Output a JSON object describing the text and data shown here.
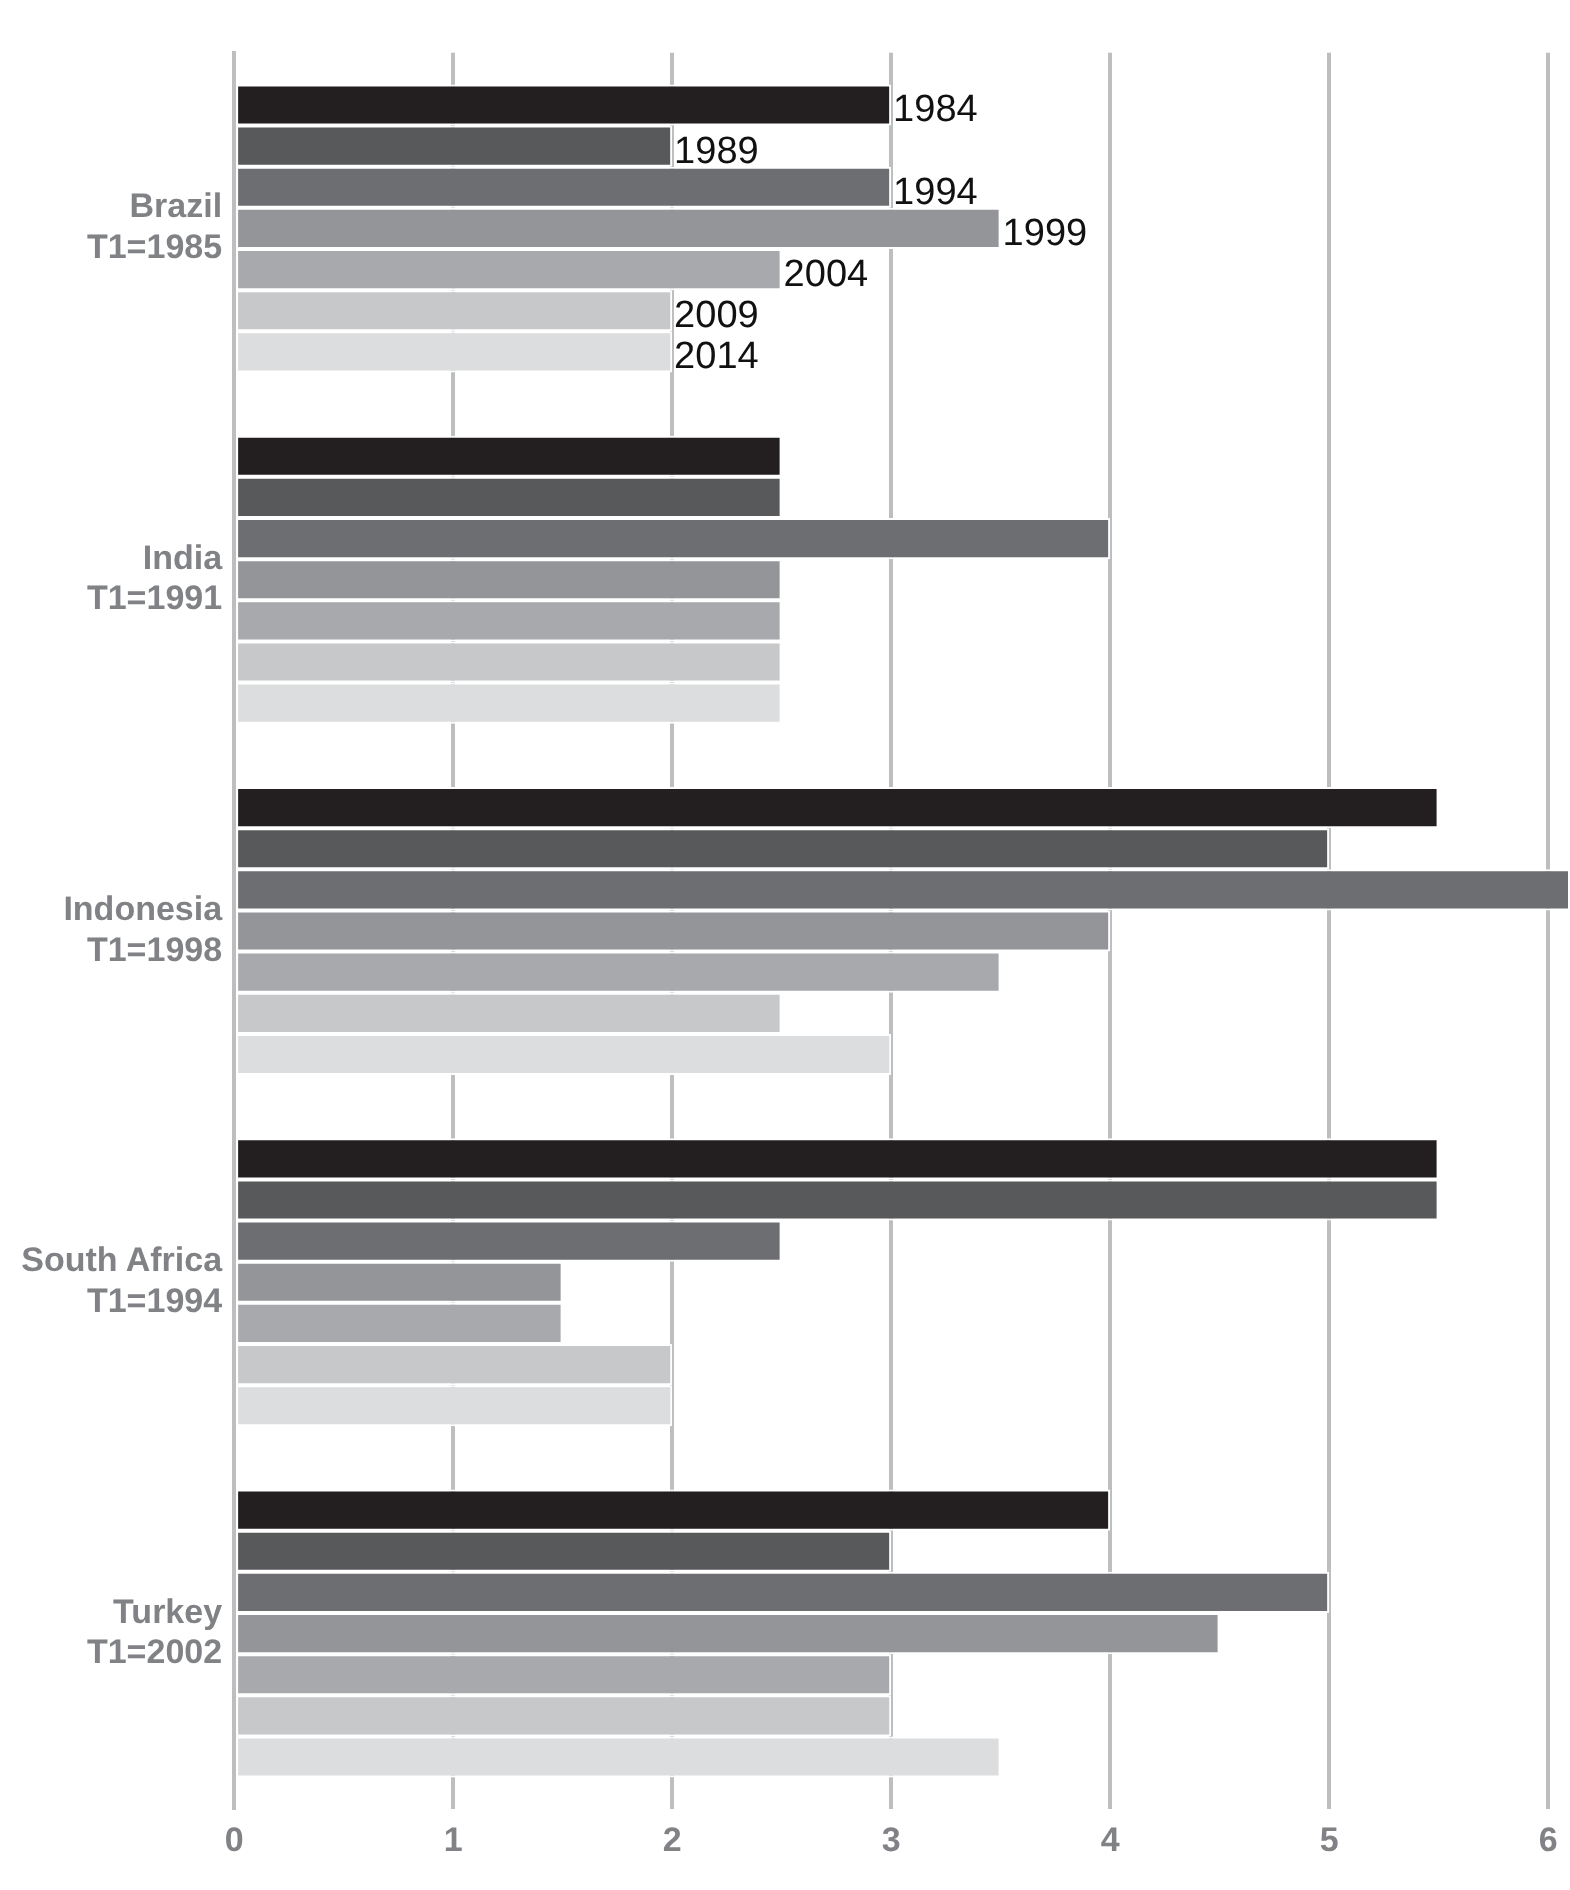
{
  "chart_data": {
    "type": "bar",
    "orientation": "horizontal",
    "categories": [
      "Brazil\nT1=1985",
      "India\nT1=1991",
      "Indonesia\nT1=1998",
      "South Africa\nT1=1994",
      "Turkey\nT1=2002"
    ],
    "series": [
      {
        "name": "1984",
        "color": "#231f20",
        "values": [
          3,
          2.5,
          5.5,
          5.5,
          4
        ]
      },
      {
        "name": "1989",
        "color": "#58595b",
        "values": [
          2,
          2.5,
          5,
          5.5,
          3
        ]
      },
      {
        "name": "1994",
        "color": "#6d6e71",
        "values": [
          3,
          4,
          6.1,
          2.5,
          5
        ]
      },
      {
        "name": "1999",
        "color": "#939598",
        "values": [
          3.5,
          2.5,
          4,
          1.5,
          4.5
        ]
      },
      {
        "name": "2004",
        "color": "#a7a9ac",
        "values": [
          2.5,
          2.5,
          3.5,
          1.5,
          3
        ]
      },
      {
        "name": "2009",
        "color": "#c7c8ca",
        "values": [
          2,
          2.5,
          2.5,
          2,
          3
        ]
      },
      {
        "name": "2014",
        "color": "#dcddde",
        "values": [
          2,
          2.5,
          3,
          2,
          3.5
        ]
      }
    ],
    "xlim": [
      0,
      6.1
    ],
    "xticks": [
      0,
      1,
      2,
      3,
      4,
      5,
      6
    ],
    "grid": "x",
    "legend": false
  }
}
